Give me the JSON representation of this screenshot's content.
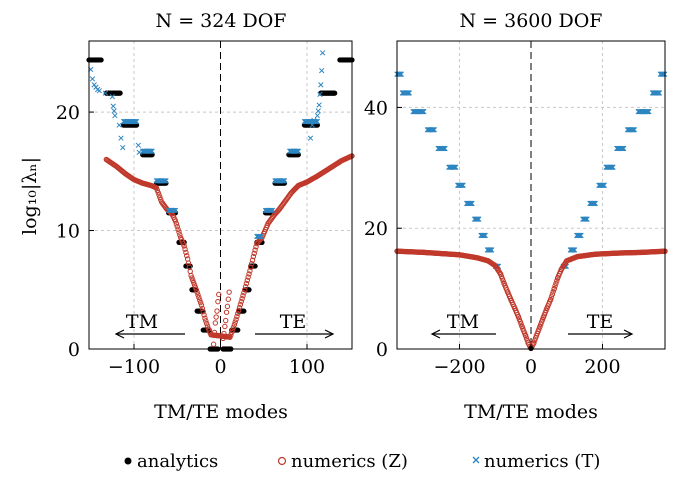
{
  "figure": {
    "ylabel": "log₁₀|λₙ|",
    "legend": [
      {
        "label": "analytics",
        "marker": "dot",
        "color": "#000000"
      },
      {
        "label": "numerics (Z)",
        "marker": "circle",
        "color": "#c0392b"
      },
      {
        "label": "numerics (T)",
        "marker": "cross",
        "color": "#2e86c1"
      }
    ]
  },
  "chart_data": [
    {
      "type": "scatter",
      "title": "N = 324 DOF",
      "xlabel": "TM/TE modes",
      "ylabel": "log₁₀|λₙ|",
      "xlim": [
        -152,
        152
      ],
      "ylim": [
        0,
        26
      ],
      "xticks": [
        -100,
        0,
        100
      ],
      "xticklabels": [
        "−100",
        "0",
        "100"
      ],
      "yticks": [
        0,
        10,
        20
      ],
      "yticklabels": [
        "0",
        "10",
        "20"
      ],
      "grid": true,
      "arrow_labels": {
        "left": "TM",
        "right": "TE"
      },
      "series": [
        {
          "name": "analytics",
          "marker": "dot",
          "color": "#000000",
          "segments": [
            [
              3,
              12,
              0.0
            ],
            [
              13,
              20,
              1.6
            ],
            [
              21,
              27,
              3.2
            ],
            [
              29,
              33,
              5.0
            ],
            [
              35,
              40,
              7.0
            ],
            [
              42,
              48,
              9.0
            ],
            [
              52,
              60,
              11.5
            ],
            [
              63,
              74,
              14.0
            ],
            [
              79,
              90,
              16.4
            ],
            [
              97,
              112,
              18.9
            ],
            [
              116,
              132,
              21.6
            ],
            [
              138,
              152,
              24.4
            ]
          ]
        },
        {
          "name": "numerics (Z)",
          "marker": "circle",
          "color": "#c0392b",
          "points": [
            [
              -8,
              0.4
            ],
            [
              -7,
              1.4
            ],
            [
              -6,
              2.2
            ],
            [
              -5,
              2.7
            ],
            [
              -4,
              3.2
            ],
            [
              -3,
              4.0
            ],
            [
              -2,
              4.6
            ],
            [
              3,
              0.9
            ],
            [
              4,
              1.3
            ],
            [
              5,
              1.9
            ],
            [
              6,
              2.4
            ],
            [
              7,
              3.1
            ],
            [
              8,
              3.6
            ],
            [
              9,
              4.2
            ],
            [
              10,
              4.8
            ]
          ],
          "curve": [
            [
              -132,
              16.0
            ],
            [
              -120,
              15.4
            ],
            [
              -110,
              14.8
            ],
            [
              -100,
              14.3
            ],
            [
              -90,
              14.0
            ],
            [
              -80,
              13.8
            ],
            [
              -74,
              13.6
            ],
            [
              -68,
              12.4
            ],
            [
              -62,
              11.8
            ],
            [
              -56,
              11.4
            ],
            [
              -52,
              10.8
            ],
            [
              -46,
              9.4
            ],
            [
              -42,
              8.7
            ],
            [
              -38,
              7.6
            ],
            [
              -34,
              6.2
            ],
            [
              -28,
              5.0
            ],
            [
              -22,
              3.7
            ],
            [
              -18,
              2.6
            ],
            [
              -14,
              1.7
            ],
            [
              -11,
              1.2
            ],
            [
              11,
              1.0
            ],
            [
              14,
              1.6
            ],
            [
              18,
              2.5
            ],
            [
              22,
              3.5
            ],
            [
              28,
              5.0
            ],
            [
              34,
              6.6
            ],
            [
              38,
              7.8
            ],
            [
              42,
              8.9
            ],
            [
              48,
              9.4
            ],
            [
              55,
              10.6
            ],
            [
              62,
              11.3
            ],
            [
              68,
              11.8
            ],
            [
              74,
              12.4
            ],
            [
              82,
              13.2
            ],
            [
              90,
              13.8
            ],
            [
              100,
              14.1
            ],
            [
              112,
              14.6
            ],
            [
              125,
              15.2
            ],
            [
              140,
              15.9
            ],
            [
              152,
              16.3
            ]
          ]
        },
        {
          "name": "numerics (T)",
          "marker": "cross",
          "color": "#2e86c1",
          "segments": [
            [
              42,
              47,
              9.5
            ],
            [
              52,
              60,
              11.7
            ],
            [
              63,
              74,
              14.2
            ],
            [
              80,
              90,
              16.7
            ],
            [
              -90,
              -79,
              16.7
            ],
            [
              -74,
              -63,
              14.2
            ],
            [
              -60,
              -52,
              11.7
            ],
            [
              -112,
              -97,
              19.2
            ],
            [
              97,
              112,
              19.2
            ]
          ],
          "points": [
            [
              -150,
              23.6
            ],
            [
              -148,
              22.8
            ],
            [
              -146,
              22.3
            ],
            [
              -144,
              22.1
            ],
            [
              -142,
              21.9
            ],
            [
              -140,
              21.8
            ],
            [
              -133,
              21.6
            ],
            [
              -125,
              21.3
            ],
            [
              -124,
              20.5
            ],
            [
              -123,
              20.1
            ],
            [
              -122,
              19.7
            ],
            [
              -117,
              18.9
            ],
            [
              -115,
              17.8
            ],
            [
              -113,
              17.0
            ],
            [
              -95,
              17.2
            ],
            [
              -94,
              16.6
            ],
            [
              112,
              19.7
            ],
            [
              113,
              20.1
            ],
            [
              114,
              20.6
            ],
            [
              115,
              21.5
            ],
            [
              116,
              22.3
            ],
            [
              117,
              23.5
            ],
            [
              118,
              25.0
            ],
            [
              104,
              17.8
            ],
            [
              106,
              18.9
            ],
            [
              108,
              19.3
            ]
          ]
        }
      ]
    },
    {
      "type": "scatter",
      "title": "N = 3600 DOF",
      "xlabel": "TM/TE modes",
      "ylabel": "",
      "xlim": [
        -375,
        375
      ],
      "ylim": [
        0,
        51
      ],
      "xticks": [
        -200,
        0,
        200
      ],
      "xticklabels": [
        "−200",
        "0",
        "200"
      ],
      "yticks": [
        0,
        20,
        40
      ],
      "yticklabels": [
        "0",
        "20",
        "40"
      ],
      "grid": true,
      "arrow_labels": {
        "left": "TM",
        "right": "TE"
      },
      "series": [
        {
          "name": "numerics (T)",
          "marker": "cross",
          "color": "#2e86c1",
          "steps": [
            [
              -375,
              -362,
              45.5
            ],
            [
              -360,
              -340,
              42.4
            ],
            [
              -330,
              -300,
              39.3
            ],
            [
              -290,
              -270,
              36.3
            ],
            [
              -260,
              -240,
              33.2
            ],
            [
              -230,
              -210,
              30.1
            ],
            [
              -205,
              -190,
              27.1
            ],
            [
              -180,
              -165,
              24.1
            ],
            [
              -158,
              -145,
              21.5
            ],
            [
              -140,
              -128,
              18.8
            ],
            [
              -122,
              -110,
              16.4
            ],
            [
              -100,
              -90,
              13.7
            ],
            [
              90,
              100,
              13.7
            ],
            [
              110,
              122,
              16.4
            ],
            [
              128,
              140,
              18.8
            ],
            [
              145,
              158,
              21.5
            ],
            [
              165,
              180,
              24.1
            ],
            [
              190,
              205,
              27.1
            ],
            [
              210,
              230,
              30.1
            ],
            [
              240,
              260,
              33.2
            ],
            [
              270,
              290,
              36.3
            ],
            [
              300,
              330,
              39.3
            ],
            [
              340,
              360,
              42.4
            ],
            [
              362,
              375,
              45.5
            ]
          ]
        },
        {
          "name": "numerics (Z)",
          "marker": "circle",
          "color": "#c0392b",
          "curve": [
            [
              -375,
              16.2
            ],
            [
              -300,
              16.0
            ],
            [
              -250,
              15.8
            ],
            [
              -200,
              15.6
            ],
            [
              -150,
              15.1
            ],
            [
              -120,
              14.6
            ],
            [
              -100,
              13.8
            ],
            [
              -85,
              12.4
            ],
            [
              -75,
              10.8
            ],
            [
              -65,
              9.4
            ],
            [
              -55,
              8.0
            ],
            [
              -45,
              6.7
            ],
            [
              -35,
              5.3
            ],
            [
              -25,
              3.7
            ],
            [
              -15,
              2.2
            ],
            [
              -8,
              1.0
            ],
            [
              0,
              0.1
            ],
            [
              8,
              1.0
            ],
            [
              15,
              2.2
            ],
            [
              25,
              3.7
            ],
            [
              35,
              5.3
            ],
            [
              45,
              6.8
            ],
            [
              55,
              8.2
            ],
            [
              65,
              10.0
            ],
            [
              75,
              11.8
            ],
            [
              85,
              13.2
            ],
            [
              100,
              14.6
            ],
            [
              130,
              15.3
            ],
            [
              180,
              15.7
            ],
            [
              250,
              15.9
            ],
            [
              310,
              16.0
            ],
            [
              375,
              16.2
            ]
          ]
        },
        {
          "name": "analytics",
          "marker": "dot",
          "color": "#000000",
          "points": [
            [
              0,
              0.1
            ]
          ]
        }
      ]
    }
  ]
}
